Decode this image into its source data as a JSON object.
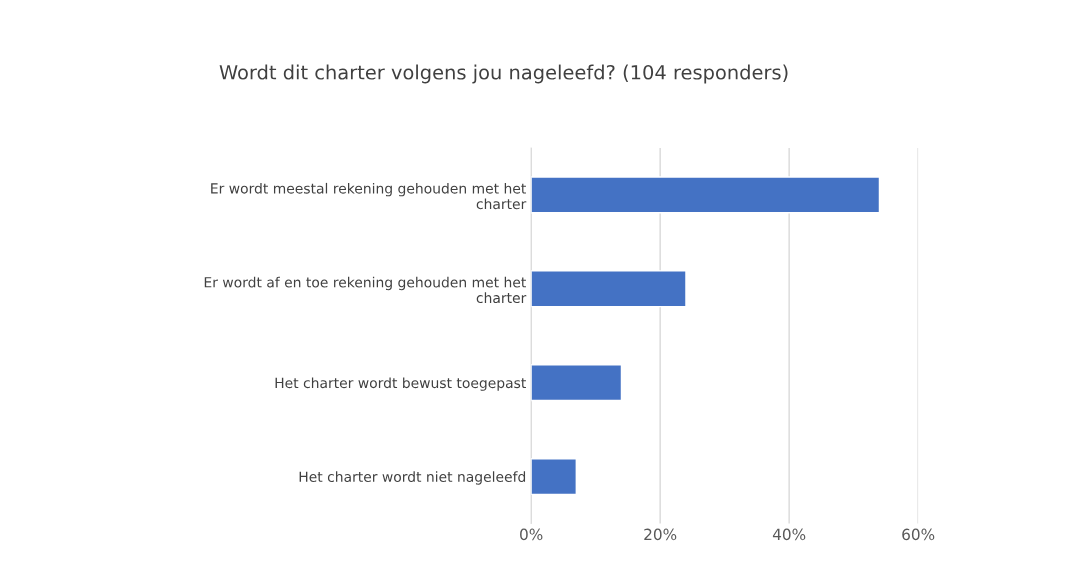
{
  "chart_data": {
    "type": "bar",
    "orientation": "horizontal",
    "title": "Wordt dit charter volgens jou nageleefd? (104 responders)",
    "categories": [
      "Er wordt meestal rekening gehouden met het\ncharter",
      "Er wordt af en toe rekening gehouden met het\ncharter",
      "Het charter wordt bewust toegepast",
      "Het charter wordt niet nageleefd"
    ],
    "values": [
      54,
      24,
      14,
      7
    ],
    "color": "#4472c4",
    "xlim": [
      0,
      60
    ],
    "xticks": [
      {
        "value": 0,
        "label": "0%"
      },
      {
        "value": 20,
        "label": "20%"
      },
      {
        "value": 40,
        "label": "40%"
      },
      {
        "value": 60,
        "label": "60%"
      }
    ],
    "grid": "x"
  }
}
